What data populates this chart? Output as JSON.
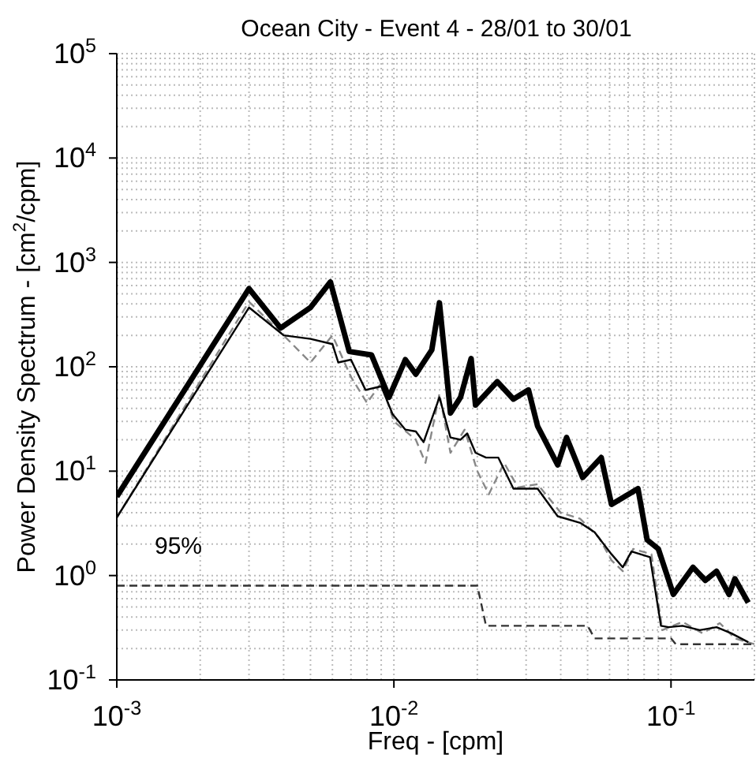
{
  "chart_data": {
    "type": "line",
    "title": "Ocean City - Event 4 - 28/01 to 30/01",
    "xlabel": "Freq - [cpm]",
    "ylabel": "Power Density Spectrum - [cm$^{2}$/cpm]",
    "log": "xy",
    "grid": true,
    "xlim": [
      0.001,
      0.2
    ],
    "ylim": [
      0.1,
      100000
    ],
    "xticks": [
      {
        "value": 0.001,
        "label": "10$^{-3}$"
      },
      {
        "value": 0.01,
        "label": "10$^{-2}$"
      },
      {
        "value": 0.1,
        "label": "10$^{-1}$"
      }
    ],
    "yticks": [
      {
        "value": 0.1,
        "label": "10$^{-1}$"
      },
      {
        "value": 1,
        "label": "10$^{0}$"
      },
      {
        "value": 10,
        "label": "10$^{1}$"
      },
      {
        "value": 100,
        "label": "10$^{2}$"
      },
      {
        "value": 1000,
        "label": "10$^{3}$"
      },
      {
        "value": 10000,
        "label": "10$^{4}$"
      },
      {
        "value": 100000,
        "label": "10$^{5}$"
      }
    ],
    "series": [
      {
        "color": "#888888",
        "line_style": "dashed",
        "x": [
          0.001,
          0.003,
          0.004,
          0.005,
          0.006,
          0.007,
          0.008,
          0.009,
          0.01,
          0.012,
          0.013,
          0.0146,
          0.016,
          0.018,
          0.02,
          0.022,
          0.025,
          0.028,
          0.033,
          0.04,
          0.047,
          0.055,
          0.061,
          0.067,
          0.073,
          0.085,
          0.093,
          0.11,
          0.13,
          0.15,
          0.17,
          0.2
        ],
        "values": [
          3.6,
          420,
          200,
          110,
          200,
          80,
          45,
          70,
          30,
          20,
          12,
          55,
          15,
          25,
          10,
          6,
          12,
          7,
          7.5,
          4,
          3.5,
          2.3,
          1.4,
          1.1,
          1.8,
          1.6,
          0.3,
          0.36,
          0.28,
          0.35,
          0.25,
          0.22
        ]
      },
      {
        "color": "#000000",
        "line_style": "solid",
        "x": [
          0.001,
          0.003,
          0.004,
          0.005,
          0.006,
          0.0063,
          0.007,
          0.0079,
          0.009,
          0.0099,
          0.011,
          0.012,
          0.0128,
          0.0146,
          0.016,
          0.0174,
          0.0184,
          0.0197,
          0.0215,
          0.0238,
          0.027,
          0.033,
          0.039,
          0.047,
          0.053,
          0.061,
          0.067,
          0.072,
          0.084,
          0.092,
          0.098,
          0.11,
          0.127,
          0.146,
          0.165,
          0.19
        ],
        "values": [
          3.6,
          370,
          200,
          185,
          165,
          110,
          117,
          60,
          65,
          35,
          25,
          24,
          19,
          51,
          21,
          20,
          23,
          15,
          13.5,
          13.5,
          6.8,
          6.8,
          3.7,
          3.2,
          2.6,
          1.6,
          1.2,
          1.7,
          1.5,
          0.33,
          0.32,
          0.33,
          0.3,
          0.32,
          0.28,
          0.23
        ]
      },
      {
        "color": "#000000",
        "line_style": "solid",
        "x": [
          0.001,
          0.003,
          0.0039,
          0.005,
          0.0059,
          0.0069,
          0.0083,
          0.0096,
          0.011,
          0.012,
          0.0137,
          0.0146,
          0.016,
          0.0174,
          0.019,
          0.0197,
          0.0236,
          0.027,
          0.0306,
          0.033,
          0.039,
          0.042,
          0.048,
          0.056,
          0.061,
          0.076,
          0.082,
          0.09,
          0.102,
          0.12,
          0.133,
          0.146,
          0.162,
          0.17,
          0.19
        ],
        "values": [
          5.7,
          560,
          235,
          370,
          650,
          140,
          130,
          51,
          117,
          85,
          145,
          410,
          36,
          51,
          120,
          43,
          72,
          49,
          60,
          27,
          11.5,
          21,
          8.7,
          13.5,
          4.8,
          6.8,
          2.2,
          1.8,
          0.66,
          1.2,
          0.9,
          1.1,
          0.66,
          0.93,
          0.55
        ]
      },
      {
        "color": "#333333",
        "line_style": "dashed",
        "x": [
          0.001,
          0.02,
          0.0215,
          0.05,
          0.053,
          0.1,
          0.104,
          0.2
        ],
        "values": [
          0.8,
          0.8,
          0.33,
          0.33,
          0.25,
          0.25,
          0.22,
          0.22
        ]
      }
    ],
    "annotations": [
      "95%"
    ]
  }
}
